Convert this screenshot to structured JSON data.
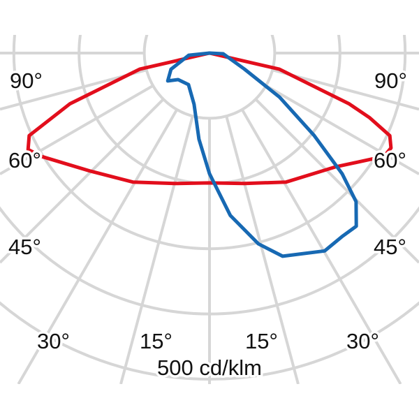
{
  "chart_data": {
    "type": "polar",
    "unit_label": "500 cd/klm",
    "angle_labels": {
      "left": [
        "90°",
        "60°",
        "45°",
        "30°",
        "15°"
      ],
      "right": [
        "90°",
        "60°",
        "45°",
        "30°",
        "15°"
      ]
    },
    "radial_max": 500,
    "radial_step": 100,
    "angle_step": 15,
    "grid": true,
    "grid_color": "#d6d6d6",
    "series": [
      {
        "color": "#e20e1c",
        "points": [
          [
            -90,
            0
          ],
          [
            -77,
            110
          ],
          [
            -70,
            228
          ],
          [
            -65.4,
            304
          ],
          [
            -62,
            315
          ],
          [
            -58.3,
            302
          ],
          [
            -45.2,
            257
          ],
          [
            -30.7,
            230
          ],
          [
            -15,
            207
          ],
          [
            0,
            199
          ],
          [
            15,
            207
          ],
          [
            30.7,
            230
          ],
          [
            47.8,
            260
          ],
          [
            59.4,
            311
          ],
          [
            62.4,
            314
          ],
          [
            65.4,
            304
          ],
          [
            68,
            265
          ],
          [
            70,
            228
          ],
          [
            77,
            110
          ],
          [
            90,
            0
          ]
        ]
      },
      {
        "color": "#1769b3",
        "points": [
          [
            90,
            0
          ],
          [
            87,
            21
          ],
          [
            65.3,
            59
          ],
          [
            57.8,
            127
          ],
          [
            51.8,
            204
          ],
          [
            47.7,
            275
          ],
          [
            44.6,
            320
          ],
          [
            40.3,
            348
          ],
          [
            35.8,
            347
          ],
          [
            30.2,
            351
          ],
          [
            19.8,
            331
          ],
          [
            14.4,
            302
          ],
          [
            7.3,
            251
          ],
          [
            0,
            185
          ],
          [
            -7,
            133
          ],
          [
            -16.8,
            82
          ],
          [
            -33.7,
            58
          ],
          [
            -49.8,
            63
          ],
          [
            -56.3,
            77
          ],
          [
            -67.3,
            64
          ],
          [
            -84,
            32
          ],
          [
            -90,
            0
          ]
        ]
      }
    ]
  }
}
